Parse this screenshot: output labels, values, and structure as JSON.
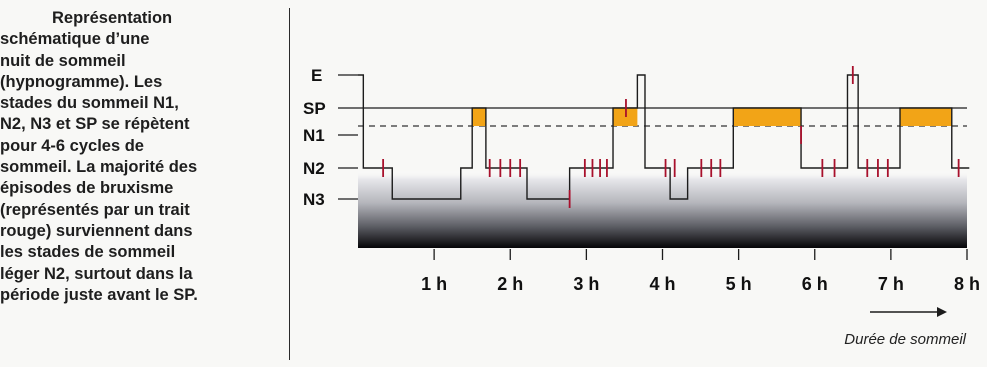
{
  "caption": {
    "lines": [
      "Représentation",
      "schématique d’une",
      "nuit de sommeil",
      "(hypnogramme). Les",
      "stades du sommeil N1,",
      "N2, N3 et SP se répètent",
      "pour 4-6 cycles de",
      "sommeil. La majorité des",
      "épisodes de bruxisme",
      "(représentés par un trait",
      "rouge) surviennent dans",
      "les stades de sommeil",
      "léger N2, surtout dans la",
      "période juste avant le SP."
    ]
  },
  "chart_data": {
    "type": "line",
    "stages": [
      "E",
      "SP",
      "N1",
      "N2",
      "N3"
    ],
    "x_ticks": [
      "1 h",
      "2 h",
      "3 h",
      "4 h",
      "5 h",
      "6 h",
      "7 h",
      "8 h"
    ],
    "xlim": [
      0,
      8
    ],
    "arrow_label": "Durée de sommeil",
    "hypnogram": [
      [
        0,
        "E"
      ],
      [
        0.07,
        "N2"
      ],
      [
        0.45,
        "N3"
      ],
      [
        1.35,
        "N2"
      ],
      [
        1.5,
        "SP"
      ],
      [
        1.68,
        "N2"
      ],
      [
        2.22,
        "N3"
      ],
      [
        2.78,
        "N2"
      ],
      [
        3.35,
        "SP"
      ],
      [
        3.67,
        "E"
      ],
      [
        3.77,
        "N2"
      ],
      [
        4.1,
        "N3"
      ],
      [
        4.33,
        "N2"
      ],
      [
        4.93,
        "SP"
      ],
      [
        5.82,
        "N2"
      ],
      [
        6.43,
        "E"
      ],
      [
        6.57,
        "N2"
      ],
      [
        7.12,
        "SP"
      ],
      [
        7.8,
        "N2"
      ],
      [
        8.03,
        "N2"
      ]
    ],
    "rem_episodes": [
      [
        1.5,
        1.68
      ],
      [
        3.35,
        3.67
      ],
      [
        4.93,
        5.82
      ],
      [
        7.12,
        7.8
      ]
    ],
    "bruxism_events": [
      [
        0.33,
        "N2"
      ],
      [
        1.73,
        "N2"
      ],
      [
        1.87,
        "N2"
      ],
      [
        2.0,
        "N2"
      ],
      [
        2.13,
        "N2"
      ],
      [
        2.78,
        "N3"
      ],
      [
        2.98,
        "N2"
      ],
      [
        3.08,
        "N2"
      ],
      [
        3.18,
        "N2"
      ],
      [
        3.27,
        "N2"
      ],
      [
        3.52,
        "SP"
      ],
      [
        4.04,
        "N2"
      ],
      [
        4.16,
        "N2"
      ],
      [
        4.51,
        "N2"
      ],
      [
        4.64,
        "N2"
      ],
      [
        4.76,
        "N2"
      ],
      [
        5.82,
        "N1"
      ],
      [
        6.1,
        "N2"
      ],
      [
        6.26,
        "N2"
      ],
      [
        6.5,
        "E"
      ],
      [
        6.69,
        "N2"
      ],
      [
        6.83,
        "N2"
      ],
      [
        6.96,
        "N2"
      ],
      [
        7.89,
        "N2"
      ]
    ],
    "colors": {
      "line": "#1c1c1c",
      "rem": "#f2a417",
      "bruxism": "#a8102c",
      "dashed": "#333333"
    }
  }
}
